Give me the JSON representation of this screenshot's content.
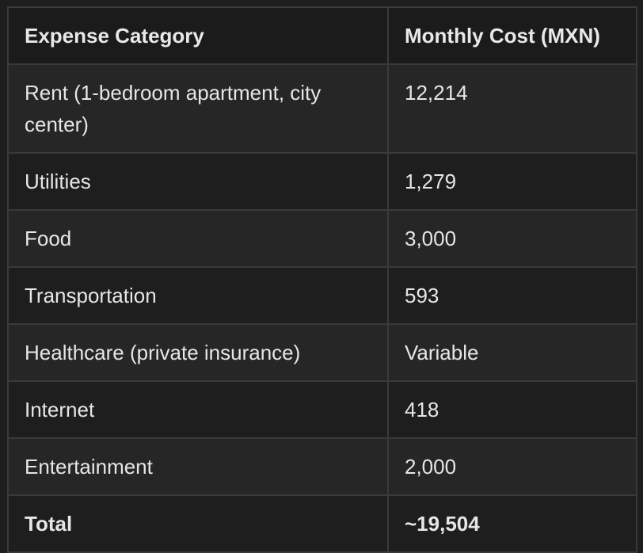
{
  "table": {
    "headers": [
      "Expense Category",
      "Monthly Cost (MXN)"
    ],
    "rows": [
      {
        "category": "Rent (1-bedroom apartment, city center)",
        "cost": "12,214"
      },
      {
        "category": "Utilities",
        "cost": "1,279"
      },
      {
        "category": "Food",
        "cost": "3,000"
      },
      {
        "category": "Transportation",
        "cost": "593"
      },
      {
        "category": "Healthcare (private insurance)",
        "cost": "Variable"
      },
      {
        "category": "Internet",
        "cost": "418"
      },
      {
        "category": "Entertainment",
        "cost": "2,000"
      },
      {
        "category": "Total",
        "cost": "~19,504"
      }
    ]
  }
}
